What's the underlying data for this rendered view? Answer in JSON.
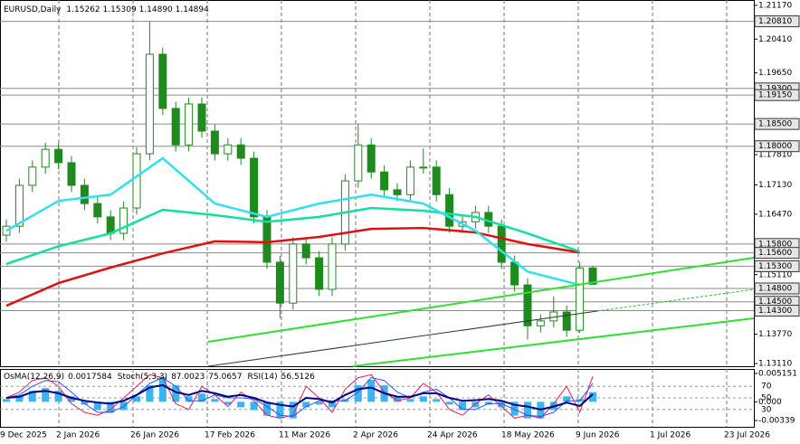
{
  "chart_data": [
    {
      "type": "candlestick",
      "title": "EURUSD,Daily",
      "quote": "1.15262 1.15309 1.14890 1.14894",
      "candle_color": "#1f8a1f",
      "candles": [
        [
          1.16,
          1.1635,
          1.1585,
          1.162
        ],
        [
          1.162,
          1.1727,
          1.1605,
          1.1712
        ],
        [
          1.1712,
          1.1768,
          1.1697,
          1.1753
        ],
        [
          1.1753,
          1.1808,
          1.1738,
          1.1793
        ],
        [
          1.1793,
          1.1808,
          1.1748,
          1.1763
        ],
        [
          1.1763,
          1.1778,
          1.1697,
          1.1712
        ],
        [
          1.1712,
          1.1727,
          1.1656,
          1.1671
        ],
        [
          1.1671,
          1.1686,
          1.1626,
          1.1641
        ],
        [
          1.1641,
          1.1656,
          1.1589,
          1.1604
        ],
        [
          1.1604,
          1.1676,
          1.1589,
          1.1661
        ],
        [
          1.1661,
          1.1798,
          1.1646,
          1.1783
        ],
        [
          1.1783,
          1.2081,
          1.1768,
          1.2007
        ],
        [
          1.2007,
          1.2022,
          1.187,
          1.1885
        ],
        [
          1.1885,
          1.19,
          1.1788,
          1.1803
        ],
        [
          1.1803,
          1.191,
          1.1788,
          1.1895
        ],
        [
          1.1895,
          1.191,
          1.1819,
          1.1834
        ],
        [
          1.1834,
          1.1849,
          1.1768,
          1.1783
        ],
        [
          1.1783,
          1.1818,
          1.1768,
          1.1803
        ],
        [
          1.1803,
          1.1818,
          1.1758,
          1.1773
        ],
        [
          1.1773,
          1.1788,
          1.1626,
          1.1641
        ],
        [
          1.1641,
          1.1656,
          1.1524,
          1.1539
        ],
        [
          1.1539,
          1.1554,
          1.1413,
          1.1447
        ],
        [
          1.1447,
          1.1595,
          1.1432,
          1.158
        ],
        [
          1.158,
          1.1595,
          1.1534,
          1.1549
        ],
        [
          1.1549,
          1.1564,
          1.1463,
          1.1478
        ],
        [
          1.1478,
          1.1595,
          1.1463,
          1.158
        ],
        [
          1.158,
          1.1737,
          1.1565,
          1.1722
        ],
        [
          1.1722,
          1.185,
          1.1707,
          1.1803
        ],
        [
          1.1803,
          1.1818,
          1.1727,
          1.1742
        ],
        [
          1.1742,
          1.1757,
          1.1687,
          1.1702
        ],
        [
          1.1702,
          1.1717,
          1.1676,
          1.1691
        ],
        [
          1.1691,
          1.1768,
          1.1676,
          1.1753
        ],
        [
          1.1753,
          1.1795,
          1.1738,
          1.1753
        ],
        [
          1.1753,
          1.1768,
          1.1676,
          1.1691
        ],
        [
          1.1691,
          1.1706,
          1.1605,
          1.162
        ],
        [
          1.162,
          1.1645,
          1.1605,
          1.163
        ],
        [
          1.163,
          1.1666,
          1.1615,
          1.1651
        ],
        [
          1.1651,
          1.1666,
          1.1605,
          1.162
        ],
        [
          1.162,
          1.1635,
          1.1524,
          1.1539
        ],
        [
          1.1539,
          1.1554,
          1.1473,
          1.1488
        ],
        [
          1.1488,
          1.1503,
          1.1365,
          1.1396
        ],
        [
          1.1396,
          1.1422,
          1.1381,
          1.1407
        ],
        [
          1.1407,
          1.1462,
          1.1392,
          1.1427
        ],
        [
          1.1427,
          1.1442,
          1.1371,
          1.1386
        ],
        [
          1.1386,
          1.154,
          1.138,
          1.1526
        ],
        [
          1.15262,
          1.15309,
          1.1489,
          1.14894
        ]
      ],
      "ma_x": [
        0,
        4,
        8,
        12,
        16,
        20,
        24,
        28,
        32,
        36,
        40,
        44
      ],
      "series": [
        {
          "color": "#e01010",
          "values": [
            1.1441,
            1.1492,
            1.1527,
            1.1559,
            1.1586,
            1.1584,
            1.1596,
            1.1614,
            1.1616,
            1.1606,
            1.158,
            1.1561
          ]
        },
        {
          "color": "#10e0a0",
          "values": [
            1.1535,
            1.1575,
            1.1604,
            1.1657,
            1.1645,
            1.163,
            1.1641,
            1.1661,
            1.1655,
            1.1641,
            1.1604,
            1.1563
          ]
        },
        {
          "color": "#30e0f0",
          "values": [
            1.161,
            1.1677,
            1.1691,
            1.1773,
            1.1671,
            1.1641,
            1.1671,
            1.1691,
            1.1671,
            1.161,
            1.1518,
            1.1488
          ]
        }
      ],
      "ylim": [
        1.1305,
        1.2129
      ],
      "yticks": [
        {
          "value": 1.2117,
          "label": "1.21170"
        },
        {
          "value": 1.2041,
          "label": "1.20410"
        },
        {
          "value": 1.1965,
          "label": "1.19650"
        },
        {
          "value": 1.1781,
          "label": "1.17810"
        },
        {
          "value": 1.1713,
          "label": "1.17130"
        },
        {
          "value": 1.1647,
          "label": "1.16470"
        },
        {
          "value": 1.1511,
          "label": "1.15110"
        },
        {
          "value": 1.1377,
          "label": "1.13770"
        },
        {
          "value": 1.1311,
          "label": "1.13110"
        }
      ],
      "levels": [
        {
          "value": 1.2081,
          "label": "1.20810"
        },
        {
          "value": 1.193,
          "label": "1.19300"
        },
        {
          "value": 1.1915,
          "label": "1.19150"
        },
        {
          "value": 1.185,
          "label": "1.18500"
        },
        {
          "value": 1.18,
          "label": "1.18000"
        },
        {
          "value": 1.158,
          "label": "1.15800"
        },
        {
          "value": 1.156,
          "label": "1.15600"
        },
        {
          "value": 1.153,
          "label": "1.15300"
        },
        {
          "value": 1.148,
          "label": "1.14800"
        },
        {
          "value": 1.145,
          "label": "1.14500"
        },
        {
          "value": 1.143,
          "label": "1.14300"
        }
      ],
      "x_labels": [
        "9 Dec 2025",
        "2 Jan 2026",
        "26 Jan 2026",
        "17 Feb 2026",
        "11 Mar 2026",
        "2 Apr 2026",
        "24 Apr 2026",
        "18 May 2026",
        "9 Jun 2026",
        "1 Jul 2026",
        "23 Jul 2026"
      ]
    },
    {
      "type": "oscillator",
      "series": [
        {
          "name": "OsMA(12,26,9)",
          "color": "#3cb4ee",
          "values": [
            0.0005,
            0.001,
            0.002,
            0.0025,
            0.002,
            0.001,
            -0.0005,
            -0.0015,
            -0.002,
            -0.0015,
            0.001,
            0.003,
            0.0045,
            0.003,
            0.001,
            0.0015,
            0.0005,
            -0.0005,
            -0.001,
            -0.0015,
            -0.0025,
            -0.003,
            -0.003,
            -0.001,
            -0.0005,
            -0.001,
            0.0005,
            0.003,
            0.004,
            0.003,
            0.001,
            0.0005,
            0.001,
            0.0005,
            -0.0005,
            -0.0015,
            -0.001,
            -0.0005,
            -0.001,
            -0.0025,
            -0.003,
            -0.003,
            -0.0015,
            0.001,
            0.0005,
            0.0017584
          ]
        },
        {
          "name": "Stoch(5,3,3)",
          "color": "#e02060",
          "axis": "y2",
          "values": [
            50,
            60,
            80,
            85,
            70,
            40,
            25,
            20,
            30,
            50,
            70,
            90,
            85,
            40,
            30,
            70,
            55,
            35,
            60,
            45,
            20,
            15,
            20,
            70,
            50,
            25,
            65,
            85,
            90,
            60,
            45,
            50,
            75,
            60,
            30,
            20,
            40,
            55,
            35,
            15,
            20,
            15,
            40,
            70,
            25,
            87.0023
          ]
        },
        {
          "color": "#3050ff",
          "axis": "y2",
          "values": [
            50,
            55,
            70,
            80,
            78,
            60,
            40,
            25,
            25,
            35,
            55,
            75,
            85,
            70,
            45,
            45,
            55,
            50,
            50,
            48,
            35,
            20,
            18,
            35,
            45,
            45,
            45,
            60,
            85,
            80,
            60,
            50,
            60,
            65,
            50,
            30,
            30,
            40,
            40,
            30,
            20,
            18,
            25,
            45,
            45,
            75.0657
          ]
        },
        {
          "name": "RSI(14)",
          "color": "#000080",
          "axis": "y2",
          "values": [
            50,
            52,
            60,
            62,
            58,
            50,
            45,
            42,
            40,
            45,
            55,
            68,
            72,
            60,
            55,
            62,
            58,
            52,
            55,
            50,
            42,
            38,
            35,
            50,
            48,
            42,
            55,
            65,
            68,
            58,
            52,
            52,
            58,
            58,
            50,
            45,
            46,
            48,
            45,
            38,
            35,
            30,
            35,
            42,
            36,
            56.5126
          ]
        }
      ],
      "ylim": [
        -0.00454,
        0.00597
      ],
      "yticks": [
        0.005151,
        {
          "value": 0,
          "label": "0.000"
        },
        -0.00339
      ],
      "y2lim": [
        0,
        100
      ],
      "y2ticks": [
        70,
        50,
        30
      ]
    }
  ]
}
